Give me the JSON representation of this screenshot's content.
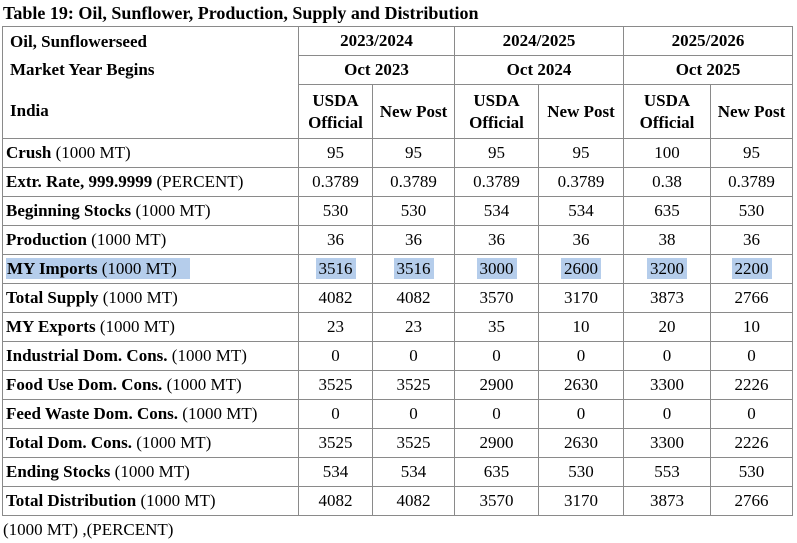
{
  "title": "Table 19: Oil, Sunflower, Production, Supply and Distribution",
  "colors": {
    "highlight": "#b5cdeb",
    "grid_border": "#8a8a8a",
    "text": "#000000"
  },
  "header": {
    "left_lines": [
      "Oil, Sunflowerseed",
      "Market Year Begins",
      "India"
    ],
    "years": [
      "2023/2024",
      "2024/2025",
      "2025/2026"
    ],
    "periods": [
      "Oct 2023",
      "Oct 2024",
      "Oct 2025"
    ],
    "sub_columns": [
      "USDA Official",
      "New Post",
      "USDA Official",
      "New Post",
      "USDA Official",
      "New Post"
    ]
  },
  "rows": [
    {
      "label": "Crush",
      "unit": "(1000 MT)",
      "highlighted": false,
      "values": [
        "95",
        "95",
        "95",
        "95",
        "100",
        "95"
      ]
    },
    {
      "label": "Extr. Rate, 999.9999",
      "unit": "(PERCENT)",
      "highlighted": false,
      "values": [
        "0.3789",
        "0.3789",
        "0.3789",
        "0.3789",
        "0.38",
        "0.3789"
      ]
    },
    {
      "label": "Beginning Stocks",
      "unit": "(1000 MT)",
      "highlighted": false,
      "values": [
        "530",
        "530",
        "534",
        "534",
        "635",
        "530"
      ]
    },
    {
      "label": "Production",
      "unit": "(1000 MT)",
      "highlighted": false,
      "values": [
        "36",
        "36",
        "36",
        "36",
        "38",
        "36"
      ]
    },
    {
      "label": "MY Imports",
      "unit": "(1000 MT)",
      "highlighted": true,
      "values": [
        "3516",
        "3516",
        "3000",
        "2600",
        "3200",
        "2200"
      ]
    },
    {
      "label": "Total Supply",
      "unit": "(1000 MT)",
      "highlighted": false,
      "values": [
        "4082",
        "4082",
        "3570",
        "3170",
        "3873",
        "2766"
      ]
    },
    {
      "label": "MY Exports",
      "unit": "(1000 MT)",
      "highlighted": false,
      "values": [
        "23",
        "23",
        "35",
        "10",
        "20",
        "10"
      ]
    },
    {
      "label": "Industrial Dom. Cons.",
      "unit": "(1000 MT)",
      "highlighted": false,
      "values": [
        "0",
        "0",
        "0",
        "0",
        "0",
        "0"
      ]
    },
    {
      "label": "Food Use Dom. Cons.",
      "unit": "(1000 MT)",
      "highlighted": false,
      "values": [
        "3525",
        "3525",
        "2900",
        "2630",
        "3300",
        "2226"
      ]
    },
    {
      "label": "Feed Waste Dom. Cons.",
      "unit": "(1000 MT)",
      "highlighted": false,
      "values": [
        "0",
        "0",
        "0",
        "0",
        "0",
        "0"
      ]
    },
    {
      "label": "Total Dom. Cons.",
      "unit": "(1000 MT)",
      "highlighted": false,
      "values": [
        "3525",
        "3525",
        "2900",
        "2630",
        "3300",
        "2226"
      ]
    },
    {
      "label": "Ending Stocks",
      "unit": "(1000 MT)",
      "highlighted": false,
      "values": [
        "534",
        "534",
        "635",
        "530",
        "553",
        "530"
      ]
    },
    {
      "label": "Total Distribution",
      "unit": "(1000 MT)",
      "highlighted": false,
      "values": [
        "4082",
        "4082",
        "3570",
        "3170",
        "3873",
        "2766"
      ]
    }
  ],
  "footer": "(1000 MT) ,(PERCENT)"
}
